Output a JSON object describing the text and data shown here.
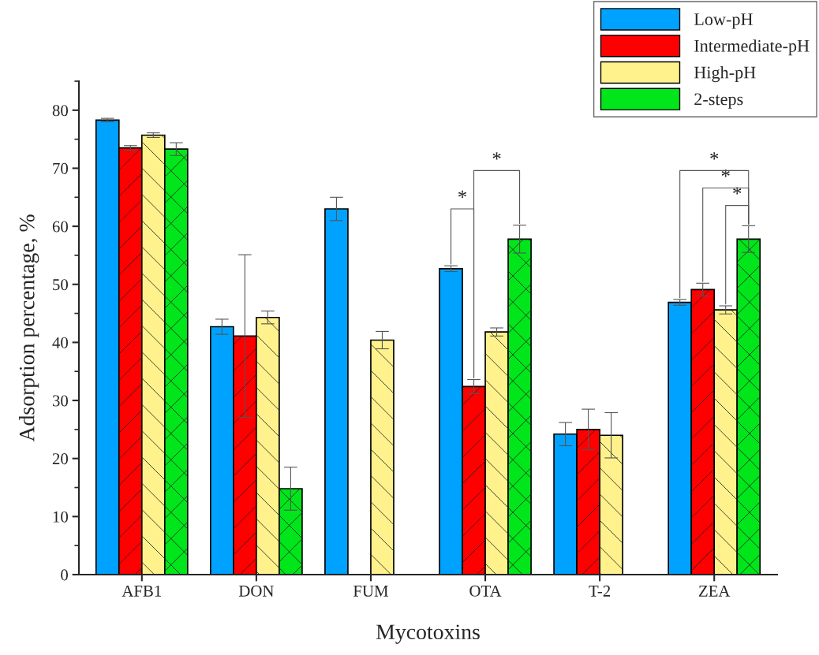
{
  "chart_data": {
    "type": "bar",
    "xlabel": "Mycotoxins",
    "ylabel": "Adsorption percentage, %",
    "categories": [
      "AFB1",
      "DON",
      "FUM",
      "OTA",
      "T-2",
      "ZEA"
    ],
    "series": [
      {
        "name": "Low-pH",
        "color": "#00a2ff",
        "values": [
          78.3,
          42.7,
          63.0,
          52.7,
          24.2,
          46.9
        ],
        "errors": [
          0.3,
          1.3,
          2.0,
          0.5,
          2.0,
          0.5
        ]
      },
      {
        "name": "Intermediate-pH",
        "color": "#ff0000",
        "values": [
          73.5,
          41.1,
          null,
          32.4,
          25.0,
          49.1
        ],
        "errors": [
          0.4,
          14.0,
          null,
          1.2,
          3.5,
          1.1
        ]
      },
      {
        "name": "High-pH",
        "color": "#fff28c",
        "values": [
          75.7,
          44.3,
          40.4,
          41.8,
          24.0,
          45.6
        ],
        "errors": [
          0.4,
          1.1,
          1.5,
          0.7,
          3.9,
          0.7
        ]
      },
      {
        "name": "2-steps",
        "color": "#00e61a",
        "values": [
          73.3,
          14.8,
          null,
          57.8,
          null,
          57.8
        ],
        "errors": [
          1.1,
          3.7,
          null,
          2.4,
          null,
          2.3
        ]
      }
    ],
    "ylim": [
      0,
      85
    ],
    "yticks": [
      0,
      10,
      20,
      30,
      40,
      50,
      60,
      70,
      80
    ],
    "legend": "top right",
    "grid": false,
    "annotations": [
      "*",
      "*",
      "*",
      "*",
      "*"
    ]
  }
}
